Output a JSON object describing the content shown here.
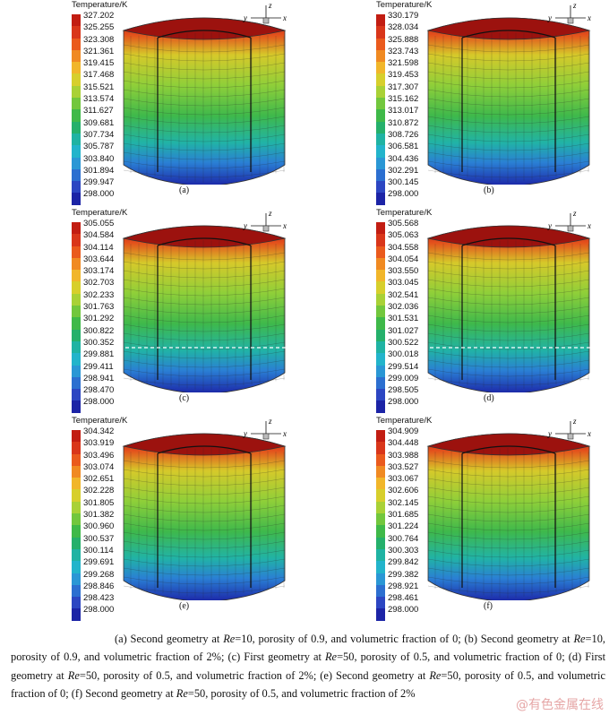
{
  "legend_title": "Temperature/K",
  "axis_labels": {
    "z": "z",
    "y": "y",
    "x": "x"
  },
  "panels": [
    {
      "label": "(a)",
      "values": [
        "327.202",
        "325.255",
        "323.308",
        "321.361",
        "319.415",
        "317.468",
        "315.521",
        "313.574",
        "311.627",
        "309.681",
        "307.734",
        "305.787",
        "303.840",
        "301.894",
        "299.947",
        "298.000"
      ],
      "dashed_line": false
    },
    {
      "label": "(b)",
      "values": [
        "330.179",
        "328.034",
        "325.888",
        "323.743",
        "321.598",
        "319.453",
        "317.307",
        "315.162",
        "313.017",
        "310.872",
        "308.726",
        "306.581",
        "304.436",
        "302.291",
        "300.145",
        "298.000"
      ],
      "dashed_line": false
    },
    {
      "label": "(c)",
      "values": [
        "305.055",
        "304.584",
        "304.114",
        "303.644",
        "303.174",
        "302.703",
        "302.233",
        "301.763",
        "301.292",
        "300.822",
        "300.352",
        "299.881",
        "299.411",
        "298.941",
        "298.470",
        "298.000"
      ],
      "dashed_line": true
    },
    {
      "label": "(d)",
      "values": [
        "305.568",
        "305.063",
        "304.558",
        "304.054",
        "303.550",
        "303.045",
        "302.541",
        "302.036",
        "301.531",
        "301.027",
        "300.522",
        "300.018",
        "299.514",
        "299.009",
        "298.505",
        "298.000"
      ],
      "dashed_line": true
    },
    {
      "label": "(e)",
      "values": [
        "304.342",
        "303.919",
        "303.496",
        "303.074",
        "302.651",
        "302.228",
        "301.805",
        "301.382",
        "300.960",
        "300.537",
        "300.114",
        "299.691",
        "299.268",
        "298.846",
        "298.423",
        "298.000"
      ],
      "dashed_line": false
    },
    {
      "label": "(f)",
      "values": [
        "304.909",
        "304.448",
        "303.988",
        "303.527",
        "303.067",
        "302.606",
        "302.145",
        "301.685",
        "301.224",
        "300.764",
        "300.303",
        "299.842",
        "299.382",
        "298.921",
        "298.461",
        "298.000"
      ],
      "dashed_line": false
    }
  ],
  "legend_colors": [
    "#c21d12",
    "#d9361a",
    "#ea5a1d",
    "#f08a22",
    "#f1b62a",
    "#d7cf2c",
    "#a9d136",
    "#72c73d",
    "#3fb949",
    "#25b06b",
    "#1fb3a3",
    "#22b4cb",
    "#2a97d5",
    "#2c6fd0",
    "#2c46c2",
    "#1c24a6"
  ],
  "caption": {
    "parts": [
      {
        "t": "(a) Second geometry at "
      },
      {
        "i": "Re"
      },
      {
        "t": "=10, porosity of 0.9, and volumetric fraction of 0; (b) Second geometry at "
      },
      {
        "i": "Re"
      },
      {
        "t": "=10, porosity of 0.9, and volumetric fraction of 2%; (c) First geometry at "
      },
      {
        "i": "Re"
      },
      {
        "t": "=50, porosity of 0.5, and volumetric fraction of 0; (d) First geometry at "
      },
      {
        "i": "Re"
      },
      {
        "t": "=50, porosity of 0.5, and volumetric fraction of 2%; (e) Second geometry at "
      },
      {
        "i": "Re"
      },
      {
        "t": "=50, porosity of 0.5, and volumetric fraction of 0; (f) Second geometry at "
      },
      {
        "i": "Re"
      },
      {
        "t": "=50, porosity of 0.5, and volumetric fraction of 2%"
      }
    ]
  },
  "watermark": "@有色金属在线"
}
